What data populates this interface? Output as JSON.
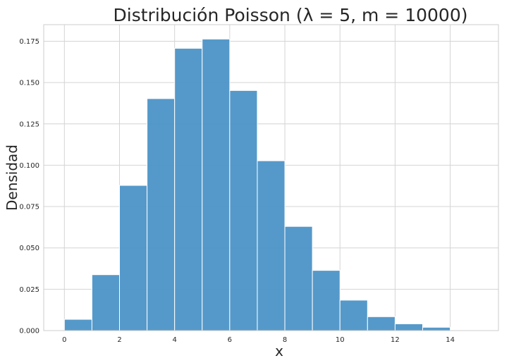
{
  "chart_data": {
    "type": "bar",
    "title": "Distribución Poisson (λ = 5, m = 10000)",
    "xlabel": "x",
    "ylabel": "Densidad",
    "xlim": [
      -0.75,
      15.75
    ],
    "ylim": [
      0,
      0.185
    ],
    "grid": true,
    "bar_color": "#4C94C7",
    "bin_width": 1,
    "bins": [
      0,
      1,
      2,
      3,
      4,
      5,
      6,
      7,
      8,
      9,
      10,
      11,
      12,
      13,
      14
    ],
    "values": [
      0.0068,
      0.0338,
      0.0878,
      0.1403,
      0.1707,
      0.1763,
      0.1452,
      0.1027,
      0.063,
      0.0364,
      0.0184,
      0.0084,
      0.0041,
      0.002,
      0.0001
    ],
    "x_ticks": [
      0,
      2,
      4,
      6,
      8,
      10,
      12,
      14
    ],
    "x_tick_labels": [
      "0",
      "2",
      "4",
      "6",
      "8",
      "10",
      "12",
      "14"
    ],
    "y_ticks": [
      0,
      0.025,
      0.05,
      0.075,
      0.1,
      0.125,
      0.15,
      0.175
    ],
    "y_tick_labels": [
      "0.000",
      "0.025",
      "0.050",
      "0.075",
      "0.100",
      "0.125",
      "0.150",
      "0.175"
    ]
  }
}
